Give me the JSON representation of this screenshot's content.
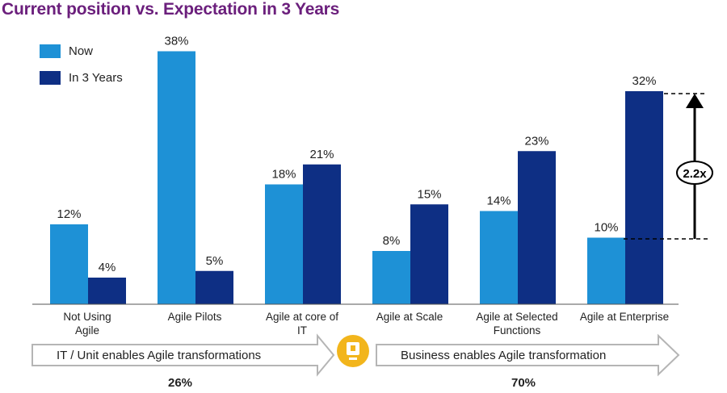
{
  "title": "Current position vs. Expectation in 3 Years",
  "colors": {
    "now": "#1e91d6",
    "future": "#0e2f84",
    "title": "#6b1f7c",
    "badge": "#f2b51c"
  },
  "chart_data": {
    "type": "bar",
    "title": "Current position vs. Expectation in 3 Years",
    "categories": [
      "Not Using Agile",
      "Agile Pilots",
      "Agile at core of IT",
      "Agile at Scale",
      "Agile at Selected Functions",
      "Agile at Enterprise"
    ],
    "category_labels": [
      "Not Using\nAgile",
      "Agile Pilots",
      "Agile at core of\nIT",
      "Agile at Scale",
      "Agile at Selected\nFunctions",
      "Agile at Enterprise"
    ],
    "series": [
      {
        "name": "Now",
        "values": [
          12,
          38,
          18,
          8,
          14,
          10
        ],
        "labels": [
          "12%",
          "38%",
          "18%",
          "8%",
          "14%",
          "10%"
        ]
      },
      {
        "name": "In 3 Years",
        "values": [
          4,
          5,
          21,
          15,
          23,
          32
        ],
        "labels": [
          "4%",
          "5%",
          "21%",
          "15%",
          "23%",
          "32%"
        ]
      }
    ],
    "ylim": [
      0,
      38
    ],
    "legend": "top-left",
    "annotation": {
      "text": "2.2x",
      "category": "Agile at Enterprise"
    }
  },
  "groups": [
    {
      "label": "IT / Unit enables Agile transformations",
      "percent": "26%"
    },
    {
      "label": "Business enables Agile transformation",
      "percent": "70%"
    }
  ],
  "badge_icon": "flag-icon"
}
